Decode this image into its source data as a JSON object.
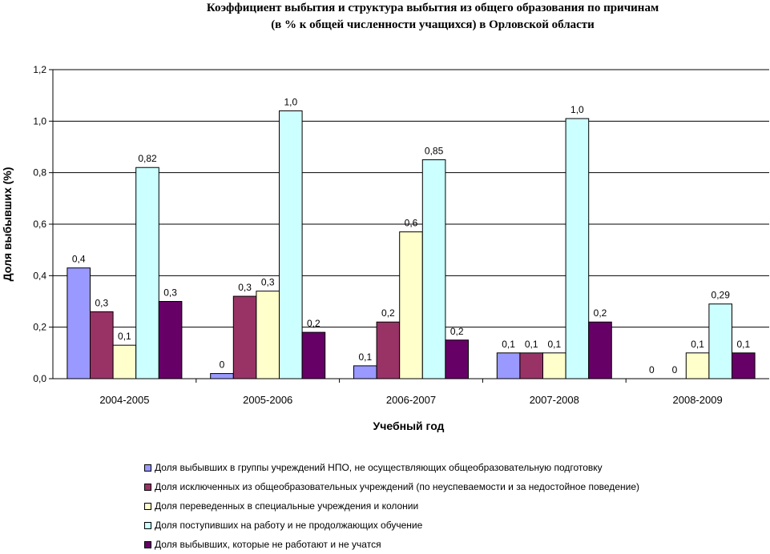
{
  "chart_data": {
    "type": "bar",
    "title_lines": [
      "Коэффициент выбытия и структура выбытия из общего образования по причинам",
      "(в % к общей численности учащихся) в Орловской области"
    ],
    "xlabel": "Учебный год",
    "ylabel": "Доля выбывших (%)",
    "ylim": [
      0,
      1.2
    ],
    "yticks": [
      "0,0",
      "0,2",
      "0,4",
      "0,6",
      "0,8",
      "1,0",
      "1,2"
    ],
    "ytick_values": [
      0,
      0.2,
      0.4,
      0.6,
      0.8,
      1.0,
      1.2
    ],
    "grid": true,
    "legend_position": "bottom",
    "categories": [
      "2004-2005",
      "2005-2006",
      "2006-2007",
      "2007-2008",
      "2008-2009"
    ],
    "series": [
      {
        "name": "Доля выбывших в группы учреждений НПО, не осуществляющих общеобразовательную подготовку",
        "color": "#9999ff",
        "values": [
          0.43,
          0.02,
          0.05,
          0.1,
          0
        ],
        "labels": [
          "0,4",
          "0",
          "0,1",
          "0,1",
          "0"
        ]
      },
      {
        "name": "Доля исключенных из общеобразовательных учреждений (по неуспеваемости и за недостойное поведение)",
        "color": "#993366",
        "values": [
          0.26,
          0.32,
          0.22,
          0.1,
          0
        ],
        "labels": [
          "0,3",
          "0,3",
          "0,2",
          "0,1",
          "0"
        ]
      },
      {
        "name": "Доля переведенных в специальные  учреждения и колонии",
        "color": "#ffffcc",
        "values": [
          0.13,
          0.34,
          0.57,
          0.1,
          0.1
        ],
        "labels": [
          "0,1",
          "0,3",
          "0,6",
          "0,1",
          "0,1"
        ]
      },
      {
        "name": "Доля поступивших на работу и не продолжающих обучение",
        "color": "#ccffff",
        "values": [
          0.82,
          1.04,
          0.85,
          1.01,
          0.29
        ],
        "labels": [
          "0,82",
          "1,0",
          "0,85",
          "1,0",
          "0,29"
        ]
      },
      {
        "name": "Доля выбывших, которые не работают и не учатся",
        "color": "#660066",
        "values": [
          0.3,
          0.18,
          0.15,
          0.22,
          0.1
        ],
        "labels": [
          "0,3",
          "0,2",
          "0,2",
          "0,2",
          "0,1"
        ]
      }
    ]
  }
}
